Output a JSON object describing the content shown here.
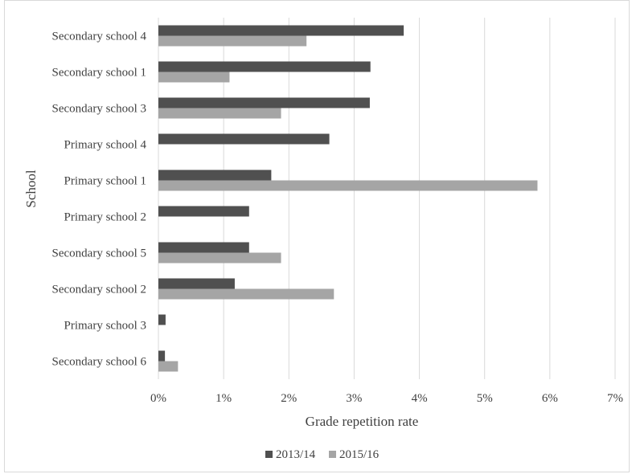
{
  "chart_data": {
    "type": "bar",
    "orientation": "horizontal",
    "title": "",
    "xlabel": "Grade repetition rate",
    "ylabel": "School",
    "xlim": [
      0,
      0.07
    ],
    "x_ticks": [
      "0%",
      "1%",
      "2%",
      "3%",
      "4%",
      "5%",
      "6%",
      "7%"
    ],
    "grid": "vertical",
    "legend": "bottom",
    "categories": [
      "Secondary school 4",
      "Secondary school 1",
      "Secondary school 3",
      "Primary school 4",
      "Primary school 1",
      "Primary school 2",
      "Secondary school 5",
      "Secondary school 2",
      "Primary school 3",
      "Secondary school 6"
    ],
    "series": [
      {
        "name": "2013/14",
        "color": "#505050",
        "values": [
          0.0376,
          0.0325,
          0.0324,
          0.0262,
          0.0173,
          0.0139,
          0.0139,
          0.0117,
          0.0011,
          0.001
        ]
      },
      {
        "name": "2015/16",
        "color": "#a5a5a5",
        "values": [
          0.0227,
          0.0109,
          0.0188,
          null,
          0.0581,
          null,
          0.0188,
          0.0269,
          null,
          0.003
        ]
      }
    ]
  }
}
